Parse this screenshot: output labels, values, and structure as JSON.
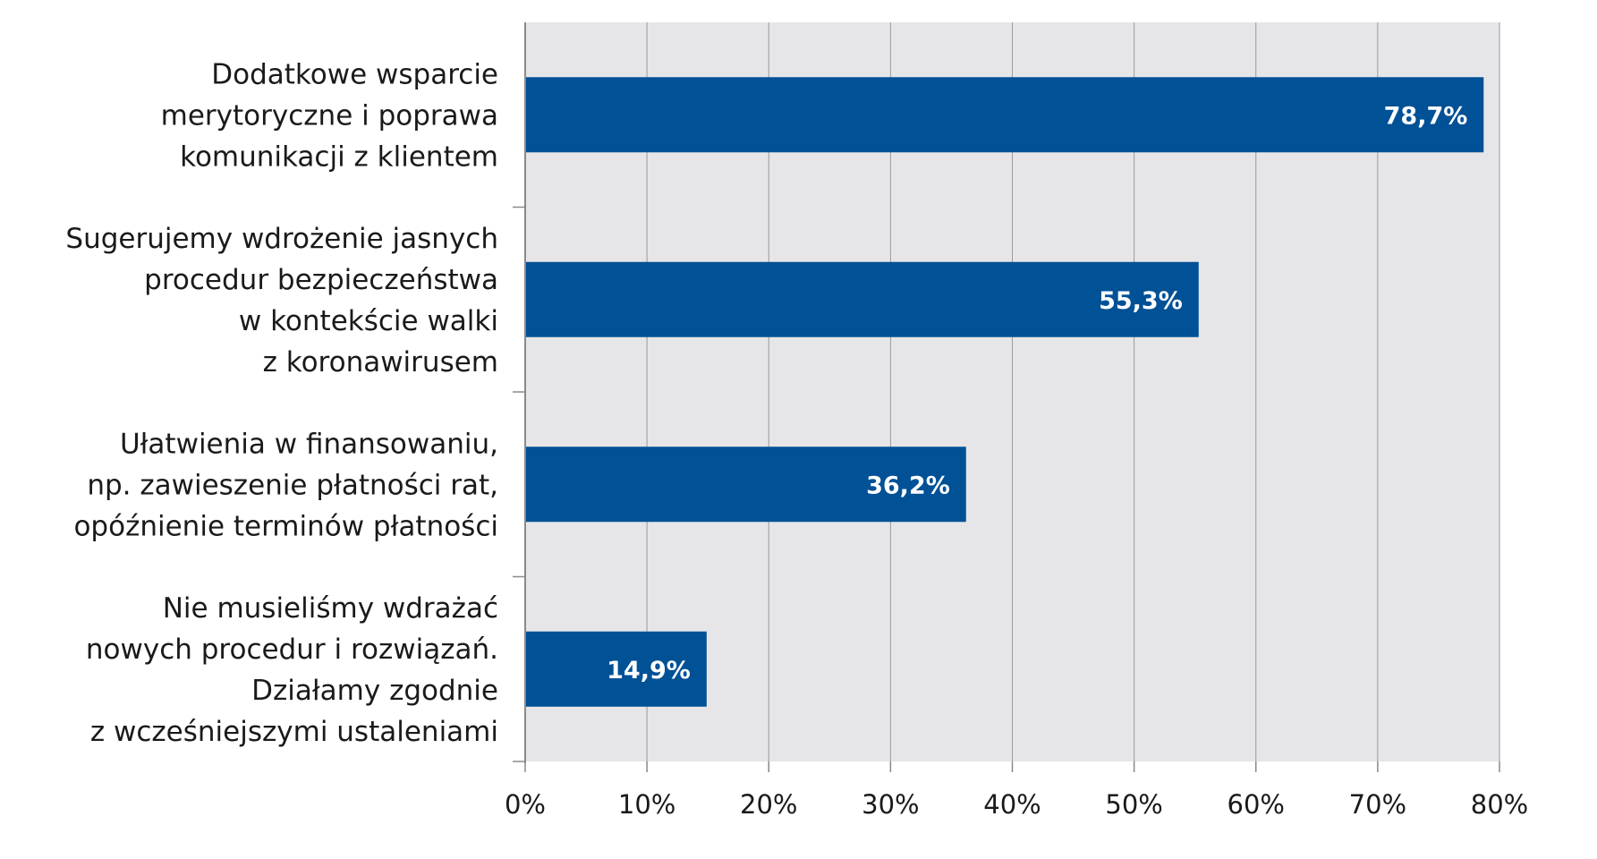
{
  "chart_data": {
    "type": "bar",
    "orientation": "horizontal",
    "categories": [
      [
        "Dodatkowe wsparcie",
        "merytoryczne i poprawa",
        "komunikacji z klientem"
      ],
      [
        "Sugerujemy wdrożenie jasnych",
        "procedur bezpieczeństwa",
        "w kontekście walki",
        "z koronawirusem"
      ],
      [
        "Ułatwienia w finansowaniu,",
        "np. zawieszenie płatności rat,",
        "opóźnienie terminów płatności"
      ],
      [
        "Nie musieliśmy wdrażać",
        "nowych procedur i rozwiązań.",
        "Działamy zgodnie",
        "z wcześniejszymi ustaleniami"
      ]
    ],
    "values": [
      78.7,
      55.3,
      36.2,
      14.9
    ],
    "data_labels": [
      "78,7%",
      "55,3%",
      "36,2%",
      "14,9%"
    ],
    "x_ticks": [
      "0%",
      "10%",
      "20%",
      "30%",
      "40%",
      "50%",
      "60%",
      "70%",
      "80%"
    ],
    "xlim": [
      0,
      80
    ],
    "grid": true,
    "title": "",
    "xlabel": "",
    "ylabel": ""
  },
  "colors": {
    "bar": "#005196",
    "plot_background": "#e6e6e8",
    "grid": "#9a9a9a",
    "axis": "#8a8a8a",
    "data_label": "#ffffff",
    "text": "#1a1a1a"
  }
}
